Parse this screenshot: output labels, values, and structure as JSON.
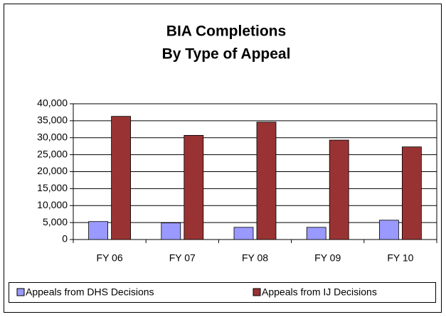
{
  "chart_data": {
    "type": "bar",
    "title": "BIA Completions",
    "subtitle": "By Type of Appeal",
    "categories": [
      "FY 06",
      "FY 07",
      "FY 08",
      "FY 09",
      "FY 10"
    ],
    "series": [
      {
        "name": "Appeals from DHS Decisions",
        "color": "#9999ff",
        "values": [
          5300,
          4900,
          3600,
          3600,
          5700
        ]
      },
      {
        "name": "Appeals from IJ Decisions",
        "color": "#993333",
        "values": [
          36300,
          30700,
          34600,
          29300,
          27300
        ]
      }
    ],
    "ylim": [
      0,
      40000
    ],
    "yticks": [
      0,
      {
        "value": 5000,
        "label": "5,000"
      },
      {
        "value": 10000,
        "label": "10,000"
      },
      {
        "value": 15000,
        "label": "15,000"
      },
      {
        "value": 20000,
        "label": "20,000"
      },
      {
        "value": 25000,
        "label": "25,000"
      },
      {
        "value": 30000,
        "label": "30,000"
      },
      {
        "value": 35000,
        "label": "35,000"
      },
      {
        "value": 40000,
        "label": "40,000"
      }
    ],
    "grid": true,
    "legend": "bottom"
  }
}
